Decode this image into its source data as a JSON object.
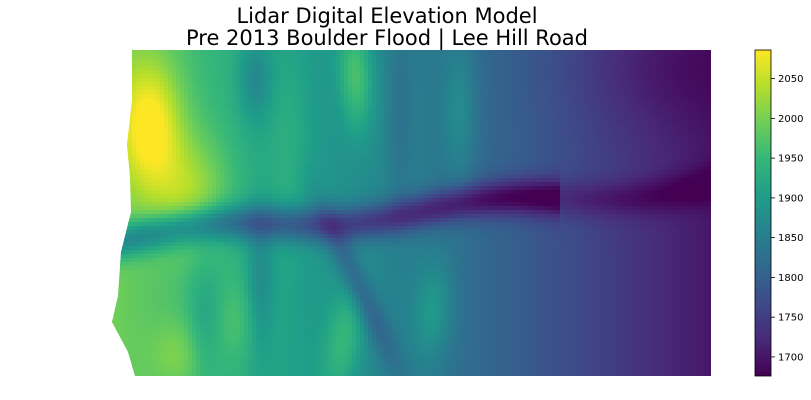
{
  "chart_data": {
    "type": "heatmap",
    "title": "Lidar Digital Elevation Model",
    "subtitle": "Pre 2013 Boulder Flood | Lee Hill Road",
    "xlabel": "",
    "ylabel": "",
    "axes_visible": false,
    "colormap": "viridis",
    "colorbar": {
      "position": "right",
      "min": 1676,
      "max": 2086,
      "ticks": [
        1700,
        1750,
        1800,
        1850,
        1900,
        1950,
        2000,
        2050
      ],
      "tick_labels": [
        "1700",
        "1750",
        "1800",
        "1850",
        "1900",
        "1950",
        "2000",
        "2050"
      ]
    },
    "viridis_stops": [
      "#440154",
      "#482878",
      "#3e4a89",
      "#31688e",
      "#26828e",
      "#1f9e89",
      "#35b779",
      "#6ece58",
      "#b5de2b",
      "#fde725"
    ]
  }
}
